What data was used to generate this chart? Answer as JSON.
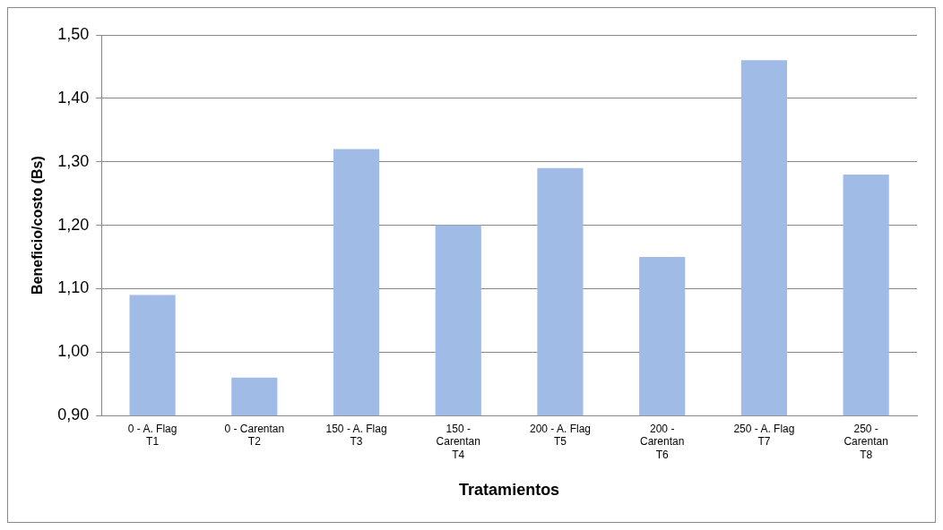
{
  "chart_data": {
    "type": "bar",
    "xlabel": "Tratamientos",
    "ylabel": "Beneficio/costo (Bs)",
    "categories": [
      "0 - A. Flag\nT1",
      "0 - Carentan\nT2",
      "150 - A. Flag\nT3",
      "150 -\nCarentan\nT4",
      "200 - A. Flag\nT5",
      "200 -\nCarentan\nT6",
      "250 - A. Flag\nT7",
      "250 -\nCarentan\nT8"
    ],
    "values": [
      1.09,
      0.96,
      1.32,
      1.2,
      1.29,
      1.15,
      1.46,
      1.28
    ],
    "color": "#9fbbe6",
    "ylim": [
      0.9,
      1.5
    ],
    "yticks": [
      {
        "value": 0.9,
        "label": "0,90"
      },
      {
        "value": 1.0,
        "label": "1,00"
      },
      {
        "value": 1.1,
        "label": "1,10"
      },
      {
        "value": 1.2,
        "label": "1,20"
      },
      {
        "value": 1.3,
        "label": "1,30"
      },
      {
        "value": 1.4,
        "label": "1,40"
      },
      {
        "value": 1.5,
        "label": "1,50"
      }
    ],
    "grid": "y"
  }
}
